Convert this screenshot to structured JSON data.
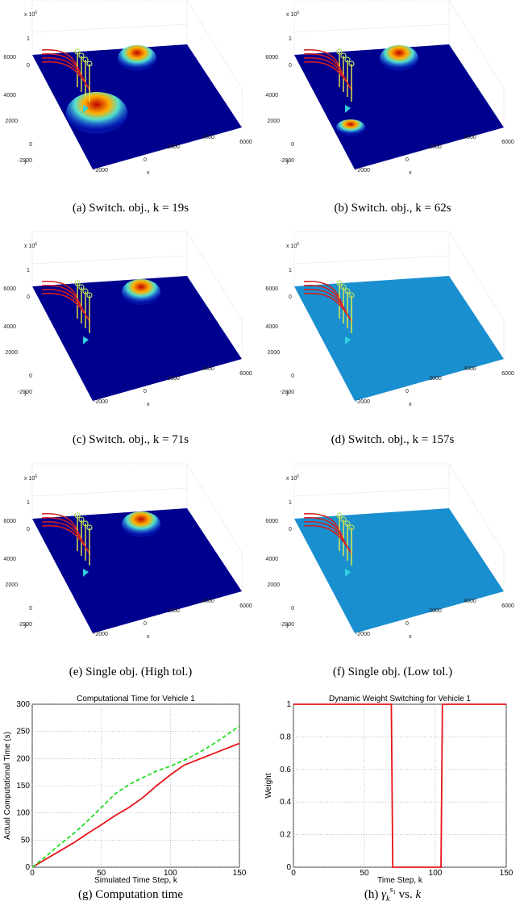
{
  "figures_3d": {
    "axes": {
      "scale": "x 10",
      "scale_exponent": "6",
      "zticks": [
        "1",
        "0"
      ],
      "yticks": [
        "6000",
        "4000",
        "2000",
        "0",
        "-2000"
      ],
      "ylabel": "y",
      "xticks": [
        "-2000",
        "0",
        "2000",
        "4000",
        "6000"
      ],
      "xlabel": "x"
    },
    "panels": [
      {
        "caption": "(a) Switch. obj., k = 19s"
      },
      {
        "caption": "(b) Switch. obj., k = 62s"
      },
      {
        "caption": "(c) Switch. obj., k = 71s"
      },
      {
        "caption": "(d) Switch. obj., k = 157s"
      },
      {
        "caption": "(e) Single obj. (High tol.)"
      },
      {
        "caption": "(f) Single obj. (Low tol.)"
      }
    ]
  },
  "chart_data": [
    {
      "type": "line",
      "title": "Computational Time for Vehicle 1",
      "x_label": "Simulated Time Step, k",
      "y_label": "Actual Computational Time (s)",
      "caption": "(g) Computation time",
      "x": [
        0,
        10,
        20,
        30,
        40,
        50,
        60,
        70,
        80,
        90,
        100,
        110,
        120,
        130,
        140,
        150
      ],
      "series": [
        {
          "color": "#e8141a",
          "line_style": "solid",
          "values": [
            0,
            15,
            30,
            45,
            62,
            78,
            95,
            110,
            128,
            150,
            170,
            188,
            198,
            208,
            218,
            228
          ]
        },
        {
          "color": "#22dd22",
          "line_style": "dashed",
          "values": [
            0,
            20,
            42,
            62,
            85,
            110,
            135,
            152,
            165,
            177,
            186,
            197,
            210,
            225,
            242,
            260
          ]
        }
      ],
      "xlim": [
        0,
        150
      ],
      "xticks": [
        0,
        50,
        100,
        150
      ],
      "ylim": [
        0,
        300
      ],
      "yticks": [
        0,
        50,
        100,
        150,
        200,
        250,
        300
      ],
      "grid": true
    },
    {
      "type": "line",
      "title": "Dynamic Weight Switching for Vehicle 1",
      "x_label": "Time Step, k",
      "y_label": "Weight",
      "caption_parts": {
        "prefix": "(h) ",
        "symbol": "γ",
        "sub": "k",
        "sup": "s",
        "sup_sub": "1",
        "middle": " vs. ",
        "var": "k"
      },
      "x": [
        0,
        69,
        70,
        104,
        105,
        150
      ],
      "series": [
        {
          "color": "#e8141a",
          "line_style": "solid",
          "values": [
            1,
            1,
            0,
            0,
            1,
            1
          ]
        }
      ],
      "xlim": [
        0,
        150
      ],
      "xticks": [
        0,
        50,
        100,
        150
      ],
      "ylim": [
        0,
        1
      ],
      "yticks": [
        0,
        0.2,
        0.4,
        0.6,
        0.8,
        1
      ],
      "grid": true
    }
  ]
}
